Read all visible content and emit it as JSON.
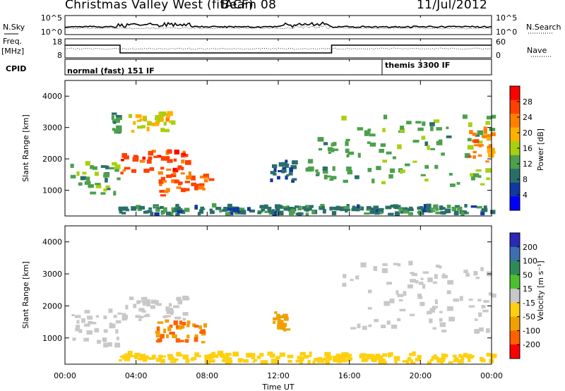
{
  "header": {
    "title": "Christmas Valley West (fitACF)",
    "beam": "Beam 08",
    "date": "11/Jul/2012"
  },
  "top_panels": {
    "nsky_label": "N.Sky",
    "nsearch_label": "N.Search",
    "nsky_ticks": [
      "10^5",
      "10^0"
    ],
    "nsearch_ticks": [
      "10^5",
      "10^0"
    ],
    "freq_label_1": "Freq.",
    "freq_label_2": "[MHz]",
    "freq_ticks": [
      "18",
      "8"
    ],
    "nave_label": "Nave",
    "nave_ticks": [
      "60",
      "0"
    ],
    "cpid_label": "CPID",
    "cpid_segments": [
      {
        "label": "normal (fast) 151 IF",
        "start_hour": 0
      },
      {
        "label": "themis 3300 IF",
        "start_hour": 18
      }
    ],
    "freq_steps": [
      {
        "start_hour": 0,
        "end_hour": 3.1,
        "level": "high"
      },
      {
        "start_hour": 3.1,
        "end_hour": 15.0,
        "level": "low"
      },
      {
        "start_hour": 15.0,
        "end_hour": 24,
        "level": "high"
      }
    ]
  },
  "power_panel": {
    "ylabel": "Slant Range [km]",
    "colorbar_label": "Power [dB]",
    "colorbar_ticks": [
      "28",
      "24",
      "20",
      "16",
      "12",
      "8",
      "4"
    ],
    "colorbar_colors": [
      "#ff0000",
      "#ff4000",
      "#ff8000",
      "#ffb000",
      "#a8d010",
      "#4ca04c",
      "#2a6e6a",
      "#1038a0",
      "#0000ff"
    ]
  },
  "velocity_panel": {
    "ylabel": "Slant Range [km]",
    "colorbar_label": "Velocity [m s⁻¹]",
    "colorbar_ticks": [
      "200",
      "100",
      "50",
      "15",
      "-15",
      "-50",
      "-100",
      "-200"
    ],
    "colorbar_colors": [
      "#2a28b8",
      "#3c6fb0",
      "#2e8b57",
      "#4cc030",
      "#c8c8c8",
      "#ffd010",
      "#f0a000",
      "#ff6000",
      "#ff0000"
    ]
  },
  "axes": {
    "xlabel": "Time UT",
    "x_ticks": [
      "00:00",
      "04:00",
      "08:00",
      "12:00",
      "16:00",
      "20:00",
      "00:00"
    ],
    "y_ticks": [
      "1000",
      "2000",
      "3000",
      "4000"
    ]
  },
  "chart_data": {
    "type": "heatmap",
    "title": "Christmas Valley West (fitACF)",
    "xlabel": "Time UT",
    "ylabel": "Slant Range [km]",
    "xlim_hours": [
      0,
      24
    ],
    "ylim": [
      180,
      4500
    ],
    "power_scale": {
      "label": "Power [dB]",
      "range": [
        0,
        30
      ]
    },
    "velocity_scale": {
      "label": "Velocity [m s⁻¹]",
      "range": [
        -200,
        200
      ]
    },
    "power_features": [
      {
        "t0": 0.3,
        "t1": 3.0,
        "r0": 700,
        "r1": 1800,
        "power": 12
      },
      {
        "t0": 3.1,
        "t1": 6.8,
        "r0": 1500,
        "r1": 2200,
        "power": 26
      },
      {
        "t0": 5.2,
        "t1": 8.2,
        "r0": 800,
        "r1": 1500,
        "power": 24
      },
      {
        "t0": 3.5,
        "t1": 6.0,
        "r0": 2800,
        "r1": 3400,
        "power": 18
      },
      {
        "t0": 2.6,
        "t1": 3.0,
        "r0": 2800,
        "r1": 3600,
        "power": 10
      },
      {
        "t0": 11.5,
        "t1": 12.8,
        "r0": 1200,
        "r1": 1900,
        "power": 6
      },
      {
        "t0": 13.5,
        "t1": 15.2,
        "r0": 1300,
        "r1": 2600,
        "power": 10
      },
      {
        "t0": 15.5,
        "t1": 24.0,
        "r0": 1100,
        "r1": 3300,
        "power": 12
      },
      {
        "t0": 22.5,
        "t1": 24.0,
        "r0": 1800,
        "r1": 2900,
        "power": 22
      },
      {
        "t0": 3.0,
        "t1": 24.0,
        "r0": 180,
        "r1": 450,
        "power": 8
      }
    ],
    "velocity_features": [
      {
        "t0": 0.3,
        "t1": 3.0,
        "r0": 700,
        "r1": 1800,
        "velocity": 0
      },
      {
        "t0": 3.1,
        "t1": 6.8,
        "r0": 1500,
        "r1": 2200,
        "velocity": 0
      },
      {
        "t0": 5.0,
        "t1": 8.0,
        "r0": 800,
        "r1": 1500,
        "velocity": -100
      },
      {
        "t0": 11.5,
        "t1": 12.5,
        "r0": 1200,
        "r1": 1800,
        "velocity": -60
      },
      {
        "t0": 15.5,
        "t1": 24.0,
        "r0": 1100,
        "r1": 3300,
        "velocity": 0
      },
      {
        "t0": 3.0,
        "t1": 24.0,
        "r0": 180,
        "r1": 450,
        "velocity": -40
      }
    ]
  }
}
